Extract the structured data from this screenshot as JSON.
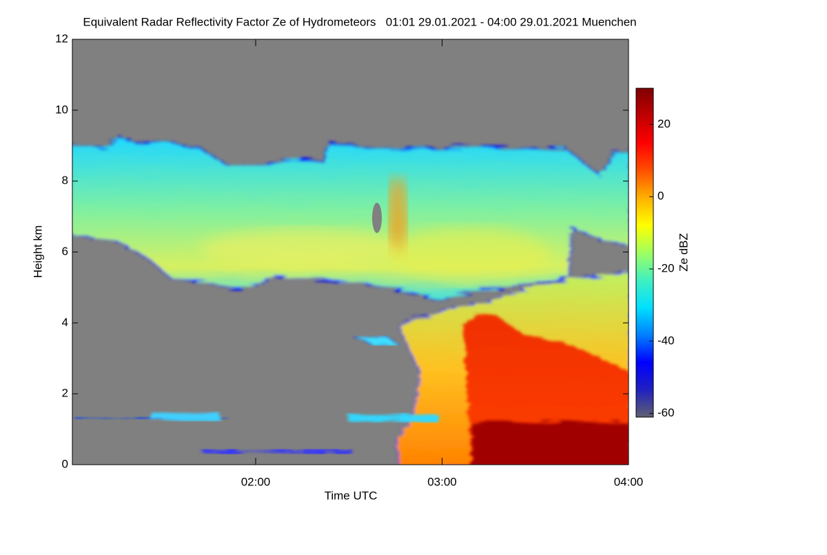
{
  "chart_data": {
    "type": "heatmap",
    "title": "Equivalent Radar Reflectivity Factor Ze of Hydrometeors   01:01 29.01.2021 - 04:00 29.01.2021 Muenchen",
    "x_label": "Time UTC",
    "y_label": "Height km",
    "xlim": [
      61,
      240
    ],
    "xticks": [
      {
        "value": 120,
        "label": "02:00"
      },
      {
        "value": 180,
        "label": "03:00"
      },
      {
        "value": 240,
        "label": "04:00"
      }
    ],
    "ylim": [
      0,
      12
    ],
    "yticks": [
      0,
      2,
      4,
      6,
      8,
      10,
      12
    ],
    "colorbar": {
      "label": "Ze dBZ",
      "lim": [
        -61,
        30
      ],
      "ticks": [
        -60,
        -40,
        -20,
        0,
        20
      ],
      "colormap": [
        "#606070",
        "#2020c0",
        "#0000ff",
        "#0080ff",
        "#00e0ff",
        "#40f0c0",
        "#a0ff60",
        "#ffff00",
        "#ffb000",
        "#ff5000",
        "#ff0000",
        "#c00000",
        "#800000"
      ]
    }
  }
}
